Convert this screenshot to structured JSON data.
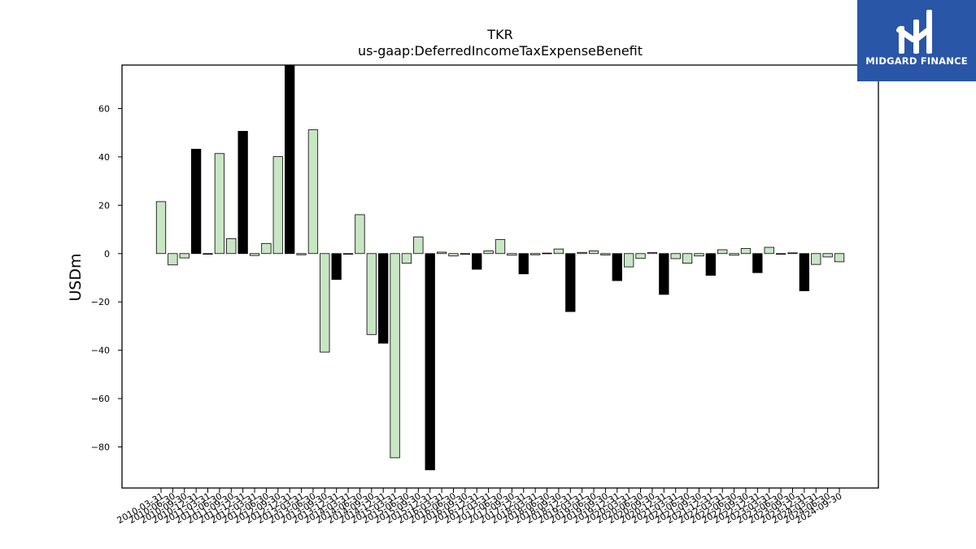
{
  "brand": {
    "name": "MIDGARD FINANCE",
    "color": "#2a56a8",
    "icon": "stylized-m-logo-icon"
  },
  "chart_data": {
    "type": "bar",
    "title": "TKR",
    "subtitle": "us-gaap:DeferredIncomeTaxExpenseBenefit",
    "xlabel": "",
    "ylabel": "USDm",
    "ylim": [
      -97,
      78
    ],
    "yticks": [
      -80,
      -60,
      -40,
      -20,
      0,
      20,
      40,
      60
    ],
    "colors": {
      "quarterly": "#c8e6c4",
      "annual": "#000000",
      "edge": "#000000"
    },
    "categories": [
      "2010-03-31",
      "2010-06-30",
      "2010-09-30",
      "2010-12-31",
      "2011-03-31",
      "2011-06-30",
      "2011-09-30",
      "2011-12-31",
      "2012-03-31",
      "2012-06-30",
      "2012-09-30",
      "2012-12-31",
      "2013-03-31",
      "2013-06-30",
      "2013-09-30",
      "2013-12-31",
      "2014-03-31",
      "2014-06-30",
      "2014-09-30",
      "2014-12-31",
      "2015-03-31",
      "2015-06-30",
      "2015-09-30",
      "2015-12-31",
      "2016-03-31",
      "2016-06-30",
      "2016-09-30",
      "2016-12-31",
      "2017-03-31",
      "2017-06-30",
      "2017-09-30",
      "2017-12-31",
      "2018-03-31",
      "2018-06-30",
      "2018-09-30",
      "2018-12-31",
      "2019-03-31",
      "2019-06-30",
      "2019-09-30",
      "2019-12-31",
      "2020-03-31",
      "2020-06-30",
      "2020-09-30",
      "2020-12-31",
      "2021-03-31",
      "2021-06-30",
      "2021-09-30",
      "2021-12-31",
      "2022-03-31",
      "2022-06-30",
      "2022-09-30",
      "2022-12-31",
      "2023-03-31",
      "2023-06-30",
      "2023-09-30",
      "2023-12-31",
      "2024-03-31",
      "2024-06-30",
      "2024-09-30"
    ],
    "values": [
      21.5,
      -4.7,
      -1.8,
      43.2,
      0,
      41.4,
      6.2,
      50.6,
      -0.8,
      4.2,
      40.1,
      78.5,
      -0.5,
      51.2,
      -40.8,
      -10.7,
      -0.2,
      16.1,
      -33.5,
      -37.1,
      -84.5,
      -4.0,
      6.9,
      -89.5,
      0.6,
      -1.0,
      -0.3,
      -6.5,
      1.1,
      5.8,
      -0.7,
      -8.4,
      -0.5,
      0.2,
      1.9,
      -24.0,
      0.5,
      1.1,
      -0.6,
      -11.2,
      -5.5,
      -2.0,
      0.4,
      -16.9,
      -2.1,
      -4.0,
      -1.0,
      -9.0,
      1.6,
      -0.7,
      2.1,
      -7.9,
      2.6,
      -0.3,
      0.3,
      -15.4,
      -4.5,
      -1.4,
      -3.4
    ],
    "period_type": [
      "quarter",
      "quarter",
      "quarter",
      "annual",
      "quarter",
      "quarter",
      "quarter",
      "annual",
      "quarter",
      "quarter",
      "quarter",
      "annual",
      "quarter",
      "quarter",
      "quarter",
      "annual",
      "quarter",
      "quarter",
      "quarter",
      "annual",
      "quarter",
      "quarter",
      "quarter",
      "annual",
      "quarter",
      "quarter",
      "quarter",
      "annual",
      "quarter",
      "quarter",
      "quarter",
      "annual",
      "quarter",
      "quarter",
      "quarter",
      "annual",
      "quarter",
      "quarter",
      "quarter",
      "annual",
      "quarter",
      "quarter",
      "quarter",
      "annual",
      "quarter",
      "quarter",
      "quarter",
      "annual",
      "quarter",
      "quarter",
      "quarter",
      "annual",
      "quarter",
      "quarter",
      "quarter",
      "annual",
      "quarter",
      "quarter",
      "quarter"
    ]
  }
}
